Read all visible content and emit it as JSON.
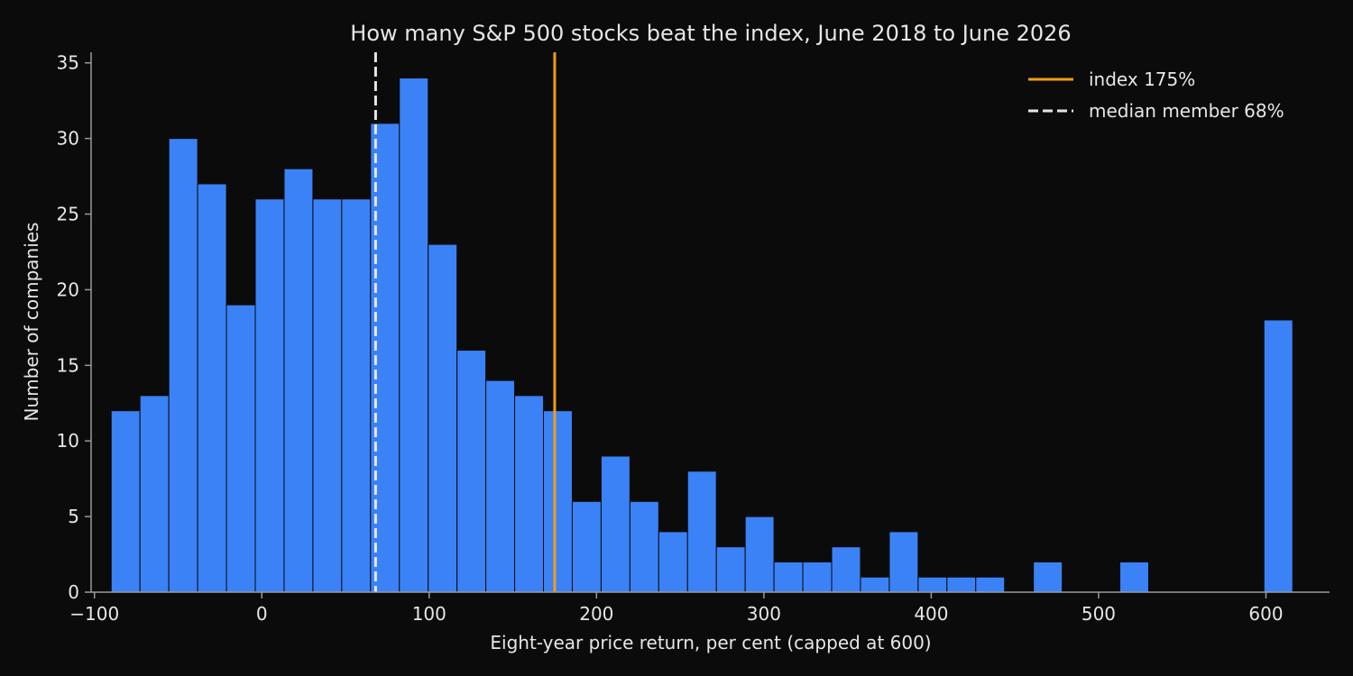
{
  "chart_data": {
    "type": "bar",
    "title": "How many S&P 500 stocks beat the index, June 2018 to June 2026",
    "xlabel": "Eight-year price return, per cent (capped at 600)",
    "ylabel": "Number of companies",
    "xlim": [
      -102,
      638
    ],
    "ylim": [
      0,
      35.7
    ],
    "xticks": [
      -100,
      0,
      100,
      200,
      300,
      400,
      500,
      600
    ],
    "xtick_labels": [
      "−100",
      "0",
      "100",
      "200",
      "300",
      "400",
      "500",
      "600"
    ],
    "yticks": [
      0,
      5,
      10,
      15,
      20,
      25,
      30,
      35
    ],
    "ytick_labels": [
      "0",
      "5",
      "10",
      "15",
      "20",
      "25",
      "30",
      "35"
    ],
    "bin_start": -90,
    "bin_width": 17.22,
    "counts": [
      12,
      13,
      30,
      27,
      19,
      26,
      28,
      26,
      26,
      31,
      34,
      23,
      16,
      14,
      13,
      12,
      6,
      9,
      6,
      4,
      8,
      3,
      5,
      2,
      2,
      3,
      1,
      4,
      1,
      1,
      1,
      0,
      2,
      0,
      0,
      2,
      0,
      0,
      0,
      0,
      18
    ],
    "reference_lines": [
      {
        "label": "index 175%",
        "x": 175,
        "color": "#f39c12",
        "style": "solid"
      },
      {
        "label": "median member 68%",
        "x": 68,
        "color": "#e6e6e6",
        "style": "dashed"
      }
    ],
    "legend_position": "top-right",
    "grid": false,
    "colors": {
      "bar": "#3b82f6",
      "bar_edge": "#0b0b0b",
      "background": "#0b0b0b",
      "axis": "#9a9a9a",
      "text": "#e6e6e6"
    }
  }
}
